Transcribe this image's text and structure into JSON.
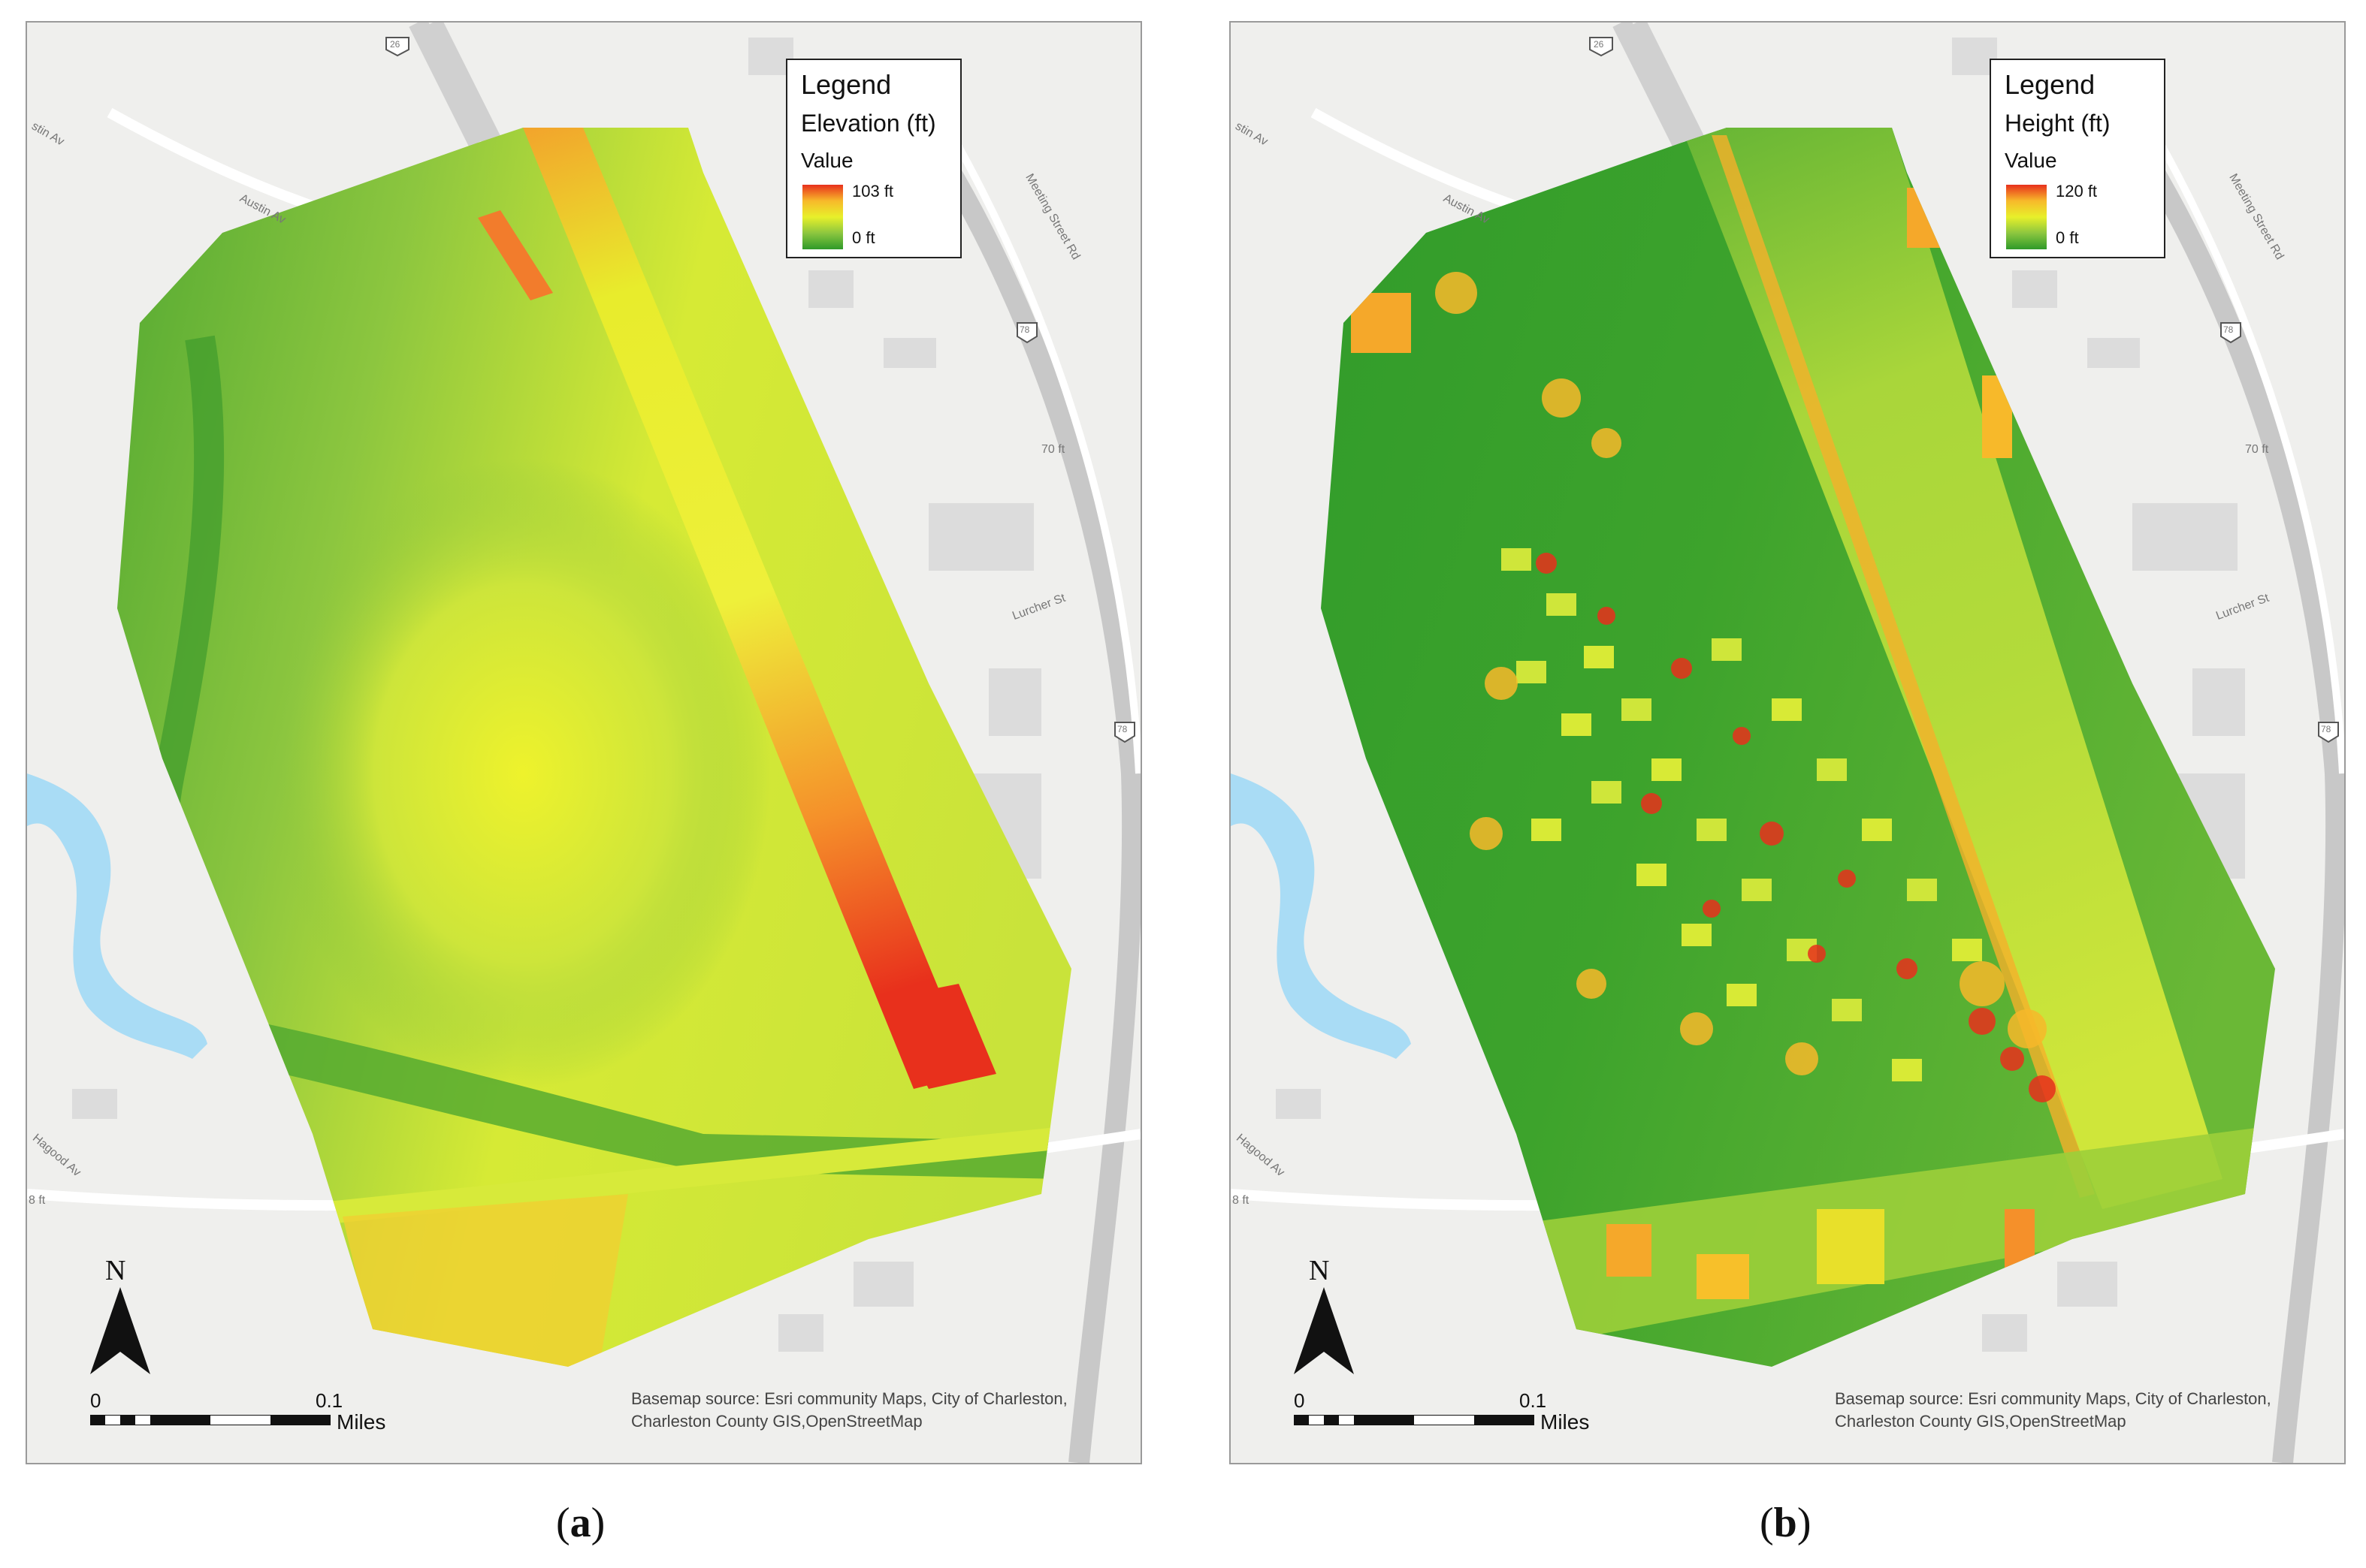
{
  "panels": [
    {
      "legend": {
        "title": "Legend",
        "field": "Elevation (ft)",
        "value_label": "Value",
        "max": "103 ft",
        "min": "0 ft",
        "ramp_colors": [
          "#e8301c",
          "#f7b92a",
          "#e8f02a",
          "#8cc63f",
          "#2f9a2a"
        ]
      },
      "north": "N",
      "scale": {
        "zero": "0",
        "tenth": "0.1",
        "unit": "Miles"
      },
      "credit": [
        "Basemap source: Esri community Maps, City of Charleston,",
        "Charleston County GIS,OpenStreetMap"
      ],
      "roads": {
        "austin": "Austin Av",
        "meeting": "Meeting Street Rd",
        "lurcher": "Lurcher St",
        "hagood": "Hagood Av",
        "austin_edge": "stin Av",
        "elev1": "70 ft",
        "elev2": "8 ft",
        "shield_26": "26",
        "shield_78a": "78",
        "shield_78b": "78"
      },
      "caption": {
        "open": "(",
        "letter": "a",
        "close": ")"
      }
    },
    {
      "legend": {
        "title": "Legend",
        "field": "Height (ft)",
        "value_label": "Value",
        "max": "120 ft",
        "min": "0 ft",
        "ramp_colors": [
          "#e8301c",
          "#f7b92a",
          "#e8f02a",
          "#8cc63f",
          "#2f9a2a"
        ]
      },
      "north": "N",
      "scale": {
        "zero": "0",
        "tenth": "0.1",
        "unit": "Miles"
      },
      "credit": [
        "Basemap source: Esri community Maps, City of Charleston,",
        "Charleston County GIS,OpenStreetMap"
      ],
      "roads": {
        "austin": "Austin Av",
        "meeting": "Meeting Street Rd",
        "lurcher": "Lurcher St",
        "hagood": "Hagood Av",
        "austin_edge": "stin Av",
        "elev1": "70 ft",
        "elev2": "8 ft",
        "shield_26": "26",
        "shield_78a": "78",
        "shield_78b": "78"
      },
      "caption": {
        "open": "(",
        "letter": "b",
        "close": ")"
      }
    }
  ],
  "colors": {
    "water": "#a9dcf5",
    "basemap": "#efefed",
    "road": "#ffffff",
    "building": "#dcdcdc",
    "low": "#2f9a2a",
    "mid": "#e8f02a",
    "high": "#e8301c"
  }
}
